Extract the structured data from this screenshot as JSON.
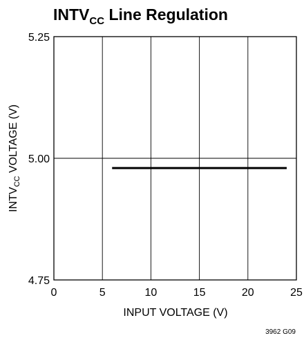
{
  "chart_data": {
    "type": "line",
    "title_prefix": "INTV",
    "title_subscript": "CC",
    "title_suffix": " Line Regulation",
    "xlabel": "INPUT VOLTAGE (V)",
    "ylabel_prefix": "INTV",
    "ylabel_subscript": "CC",
    "ylabel_suffix": " VOLTAGE (V)",
    "xlim": [
      0,
      25
    ],
    "ylim": [
      4.75,
      5.25
    ],
    "x_ticks": [
      0,
      5,
      10,
      15,
      20,
      25
    ],
    "x_tick_labels": [
      "0",
      "5",
      "10",
      "15",
      "20",
      "25"
    ],
    "y_ticks": [
      4.75,
      5.0,
      5.25
    ],
    "y_tick_labels": [
      "4.75",
      "5.00",
      "5.25"
    ],
    "grid": true,
    "series": [
      {
        "x": [
          6,
          24
        ],
        "y": [
          4.98,
          4.98
        ]
      }
    ],
    "figure_code": "3962 G09"
  }
}
